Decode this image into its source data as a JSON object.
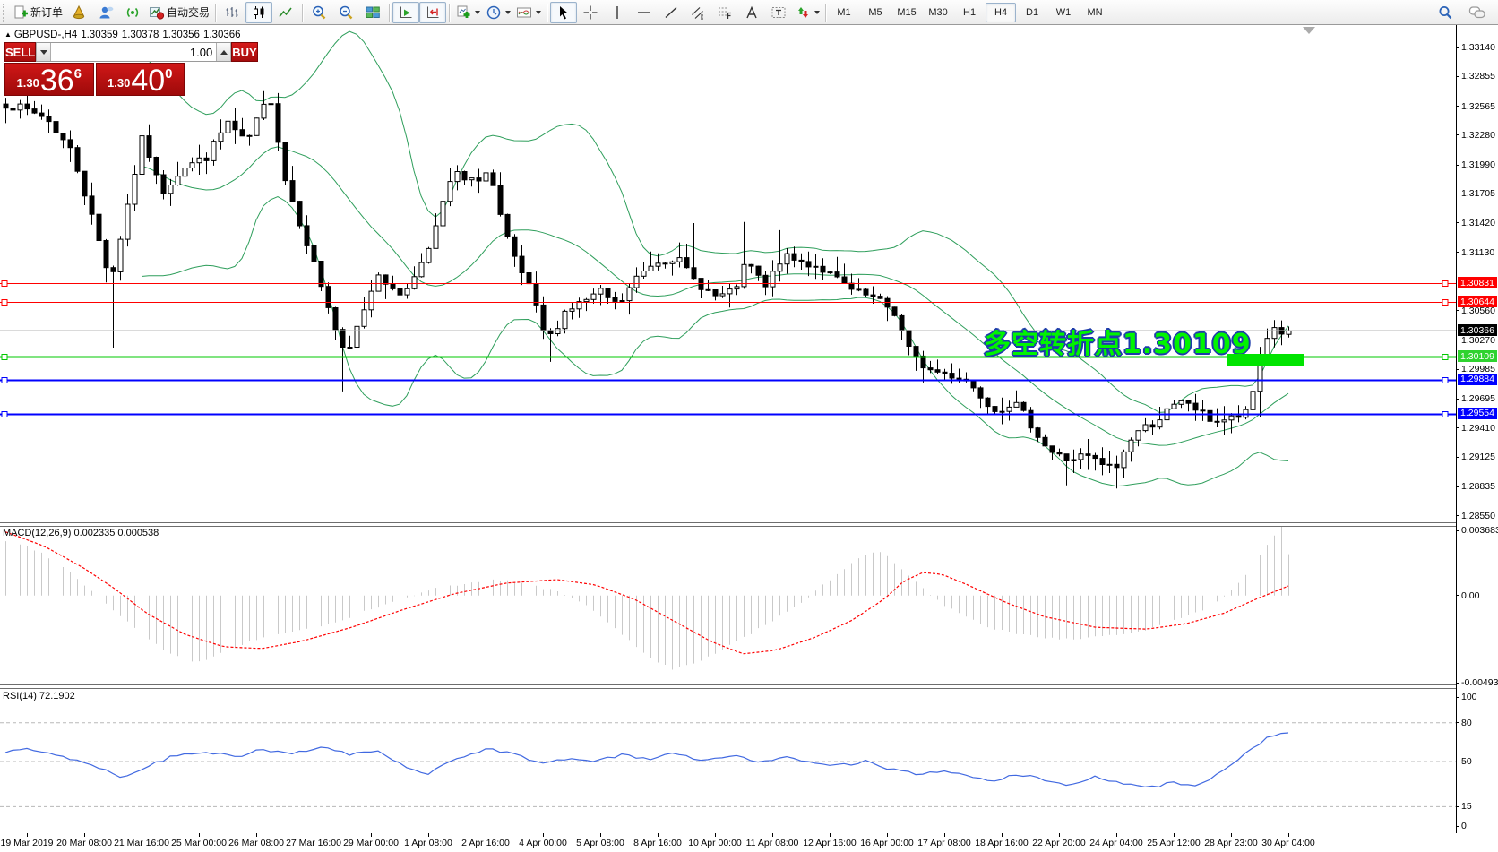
{
  "toolbar": {
    "new_order_label": "新订单",
    "auto_trading_label": "自动交易",
    "timeframes": [
      "M1",
      "M5",
      "M15",
      "M30",
      "H1",
      "H4",
      "D1",
      "W1",
      "MN"
    ],
    "active_timeframe": "H4",
    "icons": [
      "new-order",
      "market-cone",
      "community",
      "signals",
      "auto-trading",
      "bar-chart",
      "candlestick-chart",
      "line-chart",
      "zoom-in",
      "zoom-out",
      "tile-windows",
      "auto-scroll",
      "chart-shift",
      "new-chart",
      "periods",
      "indicators",
      "cursor",
      "crosshair",
      "vertical-line",
      "horizontal-line",
      "trendline",
      "equidistant-channel",
      "fibonacci",
      "text",
      "text-label",
      "arrows",
      "search",
      "chat"
    ]
  },
  "chart_header": {
    "arrow": "▲",
    "symbol_period": "GBPUSD-,H4",
    "open": "1.30359",
    "high": "1.30378",
    "low": "1.30356",
    "close": "1.30366"
  },
  "trade_panel": {
    "sell_label": "SELL",
    "buy_label": "BUY",
    "volume": "1.00",
    "sell_price": {
      "prefix": "1.30",
      "big": "36",
      "sup": "6"
    },
    "buy_price": {
      "prefix": "1.30",
      "big": "40",
      "sup": "0"
    }
  },
  "annotation": {
    "text": "多空转折点1.30109",
    "text_color": "#00f400",
    "outline_color": "#1e3caa",
    "highlight_color": "#00e400"
  },
  "price_scale": {
    "ticks": [
      "1.33140",
      "1.32855",
      "1.32565",
      "1.32280",
      "1.31990",
      "1.31705",
      "1.31420",
      "1.31130",
      "1.30560",
      "1.30270",
      "1.29985",
      "1.29695",
      "1.29410",
      "1.29125",
      "1.28835",
      "1.28550"
    ],
    "labels": [
      {
        "text": "1.30831",
        "bg": "#ff0000",
        "fg": "#ffffff"
      },
      {
        "text": "1.30644",
        "bg": "#ff0000",
        "fg": "#ffffff"
      },
      {
        "text": "1.30366",
        "bg": "#000000",
        "fg": "#ffffff"
      },
      {
        "text": "1.30109",
        "bg": "#2fd32f",
        "fg": "#ffffff"
      },
      {
        "text": "1.29884",
        "bg": "#0000ff",
        "fg": "#ffffff"
      },
      {
        "text": "1.29554",
        "bg": "#0000ff",
        "fg": "#ffffff"
      }
    ]
  },
  "macd": {
    "label": "MACD(12,26,9) 0.002335 0.000538",
    "scale": [
      "0.003683",
      "0.00",
      "-0.004933"
    ]
  },
  "rsi": {
    "label": "RSI(14) 72.1902",
    "scale": [
      "100",
      "80",
      "50",
      "15",
      "0"
    ],
    "dashed_levels": [
      80,
      50,
      15
    ]
  },
  "time_axis": [
    "19 Mar 2019",
    "20 Mar 08:00",
    "21 Mar 16:00",
    "25 Mar 00:00",
    "26 Mar 08:00",
    "27 Mar 16:00",
    "29 Mar 00:00",
    "1 Apr 08:00",
    "2 Apr 16:00",
    "4 Apr 00:00",
    "5 Apr 08:00",
    "8 Apr 16:00",
    "10 Apr 00:00",
    "11 Apr 08:00",
    "12 Apr 16:00",
    "16 Apr 00:00",
    "17 Apr 08:00",
    "18 Apr 16:00",
    "22 Apr 20:00",
    "24 Apr 04:00",
    "25 Apr 12:00",
    "28 Apr 23:00",
    "30 Apr 04:00"
  ],
  "chart_data": [
    {
      "type": "candlestick",
      "symbol": "GBPUSD-",
      "period": "H4",
      "ohlc": {
        "open": 1.30359,
        "high": 1.30378,
        "low": 1.30356,
        "close": 1.30366
      },
      "ylim": [
        1.2843,
        1.333
      ],
      "levels": [
        {
          "value": 1.30831,
          "color": "#ff0000",
          "width": 1
        },
        {
          "value": 1.30644,
          "color": "#ff0000",
          "width": 1
        },
        {
          "value": 1.30109,
          "color": "#00c800",
          "width": 2
        },
        {
          "value": 1.29884,
          "color": "#0000ff",
          "width": 2
        },
        {
          "value": 1.29554,
          "color": "#0000ff",
          "width": 2
        }
      ],
      "bid_line": {
        "value": 1.30366,
        "color": "#b4b4b4"
      },
      "bollinger": {
        "period": 20,
        "deviation": 2,
        "color": "#2e9e5b"
      },
      "close_path": [
        [
          0,
          1.3259
        ],
        [
          0.031,
          1.3246
        ],
        [
          0.052,
          1.3211
        ],
        [
          0.069,
          1.314
        ],
        [
          0.082,
          1.3085
        ],
        [
          0.093,
          1.3149
        ],
        [
          0.107,
          1.3228
        ],
        [
          0.121,
          1.3171
        ],
        [
          0.138,
          1.3197
        ],
        [
          0.156,
          1.3206
        ],
        [
          0.173,
          1.3241
        ],
        [
          0.187,
          1.3219
        ],
        [
          0.206,
          1.3268
        ],
        [
          0.218,
          1.3184
        ],
        [
          0.235,
          1.3122
        ],
        [
          0.249,
          1.3069
        ],
        [
          0.265,
          1.3007
        ],
        [
          0.277,
          1.3051
        ],
        [
          0.291,
          1.3096
        ],
        [
          0.304,
          1.3069
        ],
        [
          0.318,
          1.3087
        ],
        [
          0.336,
          1.314
        ],
        [
          0.349,
          1.3193
        ],
        [
          0.36,
          1.318
        ],
        [
          0.377,
          1.3193
        ],
        [
          0.386,
          1.3144
        ],
        [
          0.394,
          1.3113
        ],
        [
          0.408,
          1.3078
        ],
        [
          0.422,
          1.3025
        ],
        [
          0.436,
          1.3056
        ],
        [
          0.45,
          1.3065
        ],
        [
          0.464,
          1.3074
        ],
        [
          0.477,
          1.306
        ],
        [
          0.491,
          1.3087
        ],
        [
          0.505,
          1.3104
        ],
        [
          0.522,
          1.3109
        ],
        [
          0.536,
          1.3087
        ],
        [
          0.554,
          1.3069
        ],
        [
          0.567,
          1.3074
        ],
        [
          0.578,
          1.3104
        ],
        [
          0.592,
          1.3078
        ],
        [
          0.605,
          1.3109
        ],
        [
          0.619,
          1.3104
        ],
        [
          0.633,
          1.31
        ],
        [
          0.647,
          1.3087
        ],
        [
          0.661,
          1.3074
        ],
        [
          0.675,
          1.3069
        ],
        [
          0.692,
          1.3056
        ],
        [
          0.706,
          1.3012
        ],
        [
          0.72,
          1.2998
        ],
        [
          0.734,
          1.2994
        ],
        [
          0.747,
          1.299
        ],
        [
          0.761,
          1.2972
        ],
        [
          0.772,
          1.2959
        ],
        [
          0.785,
          1.2967
        ],
        [
          0.799,
          1.2945
        ],
        [
          0.813,
          1.2919
        ],
        [
          0.827,
          1.291
        ],
        [
          0.841,
          1.2914
        ],
        [
          0.855,
          1.2905
        ],
        [
          0.865,
          1.2901
        ],
        [
          0.879,
          1.2936
        ],
        [
          0.893,
          1.2945
        ],
        [
          0.907,
          1.2959
        ],
        [
          0.92,
          1.2968
        ],
        [
          0.931,
          1.2956
        ],
        [
          0.941,
          1.2948
        ],
        [
          0.955,
          1.295
        ],
        [
          0.969,
          1.2956
        ],
        [
          0.977,
          1.301
        ],
        [
          0.983,
          1.303
        ],
        [
          0.988,
          1.304
        ],
        [
          0.994,
          1.3035
        ],
        [
          1,
          1.30366
        ]
      ],
      "extremes": [
        {
          "f": 0.082,
          "low": 1.302
        },
        {
          "f": 0.265,
          "low": 1.2977
        },
        {
          "f": 0.375,
          "high": 1.3205
        },
        {
          "f": 0.422,
          "low": 1.3006
        },
        {
          "f": 0.534,
          "high": 1.3142
        },
        {
          "f": 0.578,
          "high": 1.3143
        },
        {
          "f": 0.605,
          "high": 1.3135
        },
        {
          "f": 0.765,
          "low": 1.29554
        },
        {
          "f": 0.827,
          "low": 1.2885
        },
        {
          "f": 0.865,
          "low": 1.2882
        },
        {
          "f": 0.977,
          "low": 1.2952
        }
      ]
    },
    {
      "type": "bar",
      "name": "MACD(12,26,9)",
      "current_values": [
        0.002335,
        0.000538
      ],
      "range": [
        -0.004933,
        0.003683
      ],
      "histogram_color": "#c9c9c9",
      "signal_color": "#ff0000",
      "histogram_anchors": [
        [
          0,
          0.0031
        ],
        [
          0.02,
          0.0027
        ],
        [
          0.04,
          0.0019
        ],
        [
          0.055,
          0.001
        ],
        [
          0.07,
          0.0001
        ],
        [
          0.09,
          -0.0012
        ],
        [
          0.11,
          -0.0024
        ],
        [
          0.13,
          -0.0034
        ],
        [
          0.15,
          -0.0038
        ],
        [
          0.17,
          -0.0032
        ],
        [
          0.19,
          -0.0026
        ],
        [
          0.22,
          -0.0021
        ],
        [
          0.25,
          -0.0017
        ],
        [
          0.28,
          -0.0009
        ],
        [
          0.31,
          -0.0002
        ],
        [
          0.335,
          0.0004
        ],
        [
          0.36,
          0.0007
        ],
        [
          0.385,
          0.0009
        ],
        [
          0.41,
          0.0006
        ],
        [
          0.435,
          0.0001
        ],
        [
          0.46,
          -0.0009
        ],
        [
          0.48,
          -0.0022
        ],
        [
          0.5,
          -0.0034
        ],
        [
          0.52,
          -0.0042
        ],
        [
          0.54,
          -0.0038
        ],
        [
          0.56,
          -0.003
        ],
        [
          0.58,
          -0.0022
        ],
        [
          0.6,
          -0.0013
        ],
        [
          0.62,
          -0.0004
        ],
        [
          0.635,
          0.0005
        ],
        [
          0.65,
          0.0013
        ],
        [
          0.665,
          0.0021
        ],
        [
          0.68,
          0.0026
        ],
        [
          0.695,
          0.0017
        ],
        [
          0.71,
          0.0007
        ],
        [
          0.73,
          -0.0005
        ],
        [
          0.75,
          -0.0013
        ],
        [
          0.77,
          -0.0019
        ],
        [
          0.8,
          -0.0023
        ],
        [
          0.83,
          -0.0025
        ],
        [
          0.86,
          -0.0023
        ],
        [
          0.89,
          -0.0019
        ],
        [
          0.915,
          -0.0013
        ],
        [
          0.94,
          -0.0006
        ],
        [
          0.955,
          0.0003
        ],
        [
          0.97,
          0.0015
        ],
        [
          0.985,
          0.003
        ],
        [
          0.995,
          0.004
        ],
        [
          1,
          0.002335
        ]
      ],
      "signal_anchors": [
        [
          0,
          0.0036
        ],
        [
          0.03,
          0.0028
        ],
        [
          0.06,
          0.0016
        ],
        [
          0.085,
          0.0004
        ],
        [
          0.11,
          -0.001
        ],
        [
          0.14,
          -0.0022
        ],
        [
          0.17,
          -0.0029
        ],
        [
          0.2,
          -0.003
        ],
        [
          0.23,
          -0.0026
        ],
        [
          0.27,
          -0.0018
        ],
        [
          0.31,
          -0.0008
        ],
        [
          0.35,
          0.0001
        ],
        [
          0.39,
          0.0007
        ],
        [
          0.43,
          0.0009
        ],
        [
          0.46,
          0.0006
        ],
        [
          0.49,
          -0.0002
        ],
        [
          0.52,
          -0.0014
        ],
        [
          0.55,
          -0.0026
        ],
        [
          0.575,
          -0.0033
        ],
        [
          0.6,
          -0.0031
        ],
        [
          0.63,
          -0.0024
        ],
        [
          0.66,
          -0.0014
        ],
        [
          0.685,
          -0.0002
        ],
        [
          0.7,
          0.0008
        ],
        [
          0.715,
          0.0013
        ],
        [
          0.73,
          0.0012
        ],
        [
          0.75,
          0.0006
        ],
        [
          0.78,
          -0.0004
        ],
        [
          0.81,
          -0.0012
        ],
        [
          0.85,
          -0.0018
        ],
        [
          0.89,
          -0.0019
        ],
        [
          0.92,
          -0.0016
        ],
        [
          0.95,
          -0.001
        ],
        [
          0.975,
          -0.0002
        ],
        [
          1,
          0.000538
        ]
      ]
    },
    {
      "type": "line",
      "name": "RSI(14)",
      "current": 72.1902,
      "range": [
        0,
        100
      ],
      "color": "#4169e1",
      "anchors": [
        [
          0,
          57
        ],
        [
          0.02,
          60
        ],
        [
          0.045,
          54
        ],
        [
          0.07,
          47
        ],
        [
          0.09,
          38
        ],
        [
          0.11,
          46
        ],
        [
          0.13,
          54
        ],
        [
          0.155,
          58
        ],
        [
          0.18,
          54
        ],
        [
          0.2,
          59
        ],
        [
          0.225,
          56
        ],
        [
          0.25,
          61
        ],
        [
          0.27,
          55
        ],
        [
          0.29,
          59
        ],
        [
          0.31,
          46
        ],
        [
          0.33,
          41
        ],
        [
          0.35,
          52
        ],
        [
          0.375,
          60
        ],
        [
          0.4,
          55
        ],
        [
          0.42,
          48
        ],
        [
          0.44,
          53
        ],
        [
          0.46,
          50
        ],
        [
          0.48,
          55
        ],
        [
          0.5,
          52
        ],
        [
          0.52,
          56
        ],
        [
          0.545,
          51
        ],
        [
          0.57,
          54
        ],
        [
          0.59,
          50
        ],
        [
          0.61,
          53
        ],
        [
          0.63,
          50
        ],
        [
          0.65,
          47
        ],
        [
          0.67,
          50
        ],
        [
          0.69,
          44
        ],
        [
          0.71,
          40
        ],
        [
          0.73,
          43
        ],
        [
          0.75,
          38
        ],
        [
          0.77,
          35
        ],
        [
          0.79,
          40
        ],
        [
          0.81,
          36
        ],
        [
          0.83,
          32
        ],
        [
          0.85,
          38
        ],
        [
          0.87,
          33
        ],
        [
          0.89,
          29
        ],
        [
          0.91,
          34
        ],
        [
          0.93,
          31
        ],
        [
          0.95,
          44
        ],
        [
          0.97,
          58
        ],
        [
          0.985,
          69
        ],
        [
          1,
          72.19
        ]
      ]
    }
  ]
}
